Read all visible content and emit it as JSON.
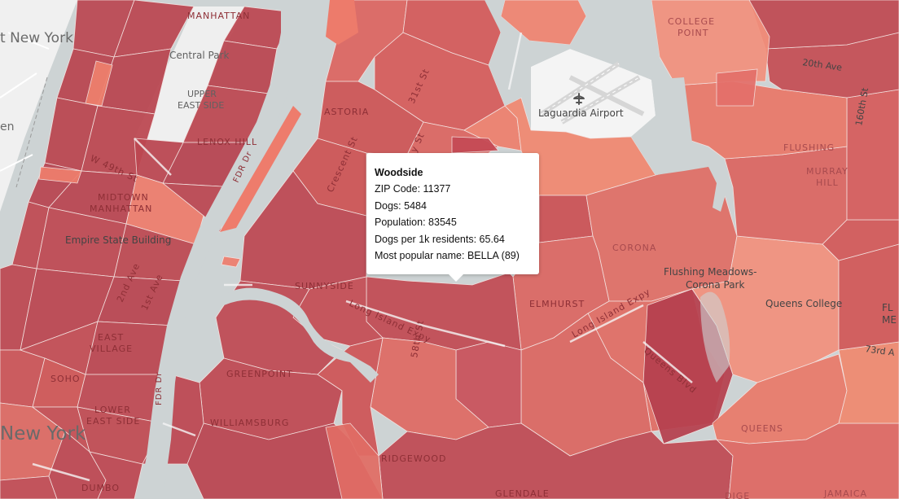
{
  "tooltip": {
    "title": "Woodside",
    "zip_label": "ZIP Code:",
    "zip_value": "11377",
    "dogs_label": "Dogs:",
    "dogs_value": "5484",
    "population_label": "Population:",
    "population_value": "83545",
    "ratio_label": "Dogs per 1k residents:",
    "ratio_value": "65.64",
    "name_label": "Most popular name:",
    "name_value": "BELLA (89)"
  },
  "labels": {
    "manhattan": "MANHATTAN",
    "central_park": "Central Park",
    "upper_east_side_1": "UPPER",
    "upper_east_side_2": "EAST SIDE",
    "lenox_hill": "LENOX HILL",
    "w49th": "W 49th St",
    "midtown_1": "MIDTOWN",
    "midtown_2": "MANHATTAN",
    "empire_state": "Empire State Building",
    "ave_2nd": "2nd Ave",
    "ave_1st": "1st Ave",
    "east_village_1": "EAST",
    "east_village_2": "VILLAGE",
    "soho": "SOHO",
    "les_1": "LOWER",
    "les_2": "EAST SIDE",
    "fdr": "FDR Dr",
    "new_york_top": "t New York",
    "new_york_big": "New York",
    "hen": "en",
    "astoria": "ASTORIA",
    "st31": "31st St",
    "crescent": "Crescent St",
    "ray": "ray St",
    "sunnyside": "SUNNYSIDE",
    "lie1": "Long Island Expy",
    "st58": "58th St",
    "greenpoint": "GREENPOINT",
    "williamsburg": "WILLIAMSBURG",
    "ridgewood": "RIDGEWOOD",
    "glendale": "GLENDALE",
    "dumbo": "DUMBO",
    "elmhurst": "ELMHURST",
    "lie2": "Long Island Expy",
    "queens_blvd": "Queens Blvd",
    "corona": "CORONA",
    "fmcp_1": "Flushing Meadows-",
    "fmcp_2": "Corona Park",
    "queens_college": "Queens College",
    "queens": "QUEENS",
    "jamaica": "JAMAICA",
    "college_point_1": "COLLEGE",
    "college_point_2": "POINT",
    "ave20": "20th Ave",
    "flushing": "FLUSHING",
    "murray_hill_1": "MURRAY",
    "murray_hill_2": "HILL",
    "laguardia": "Laguardia Airport",
    "fl": "FL",
    "me": "ME",
    "st160": "160th St",
    "rd73": "73rd A",
    "fdr2": "FDR Dr",
    "dige": "DIGE"
  },
  "colors": {
    "water": "#cdd3d4",
    "land": "#f1f1f1",
    "choropleth_dark": "#b8444e",
    "choropleth_mid": "#d5595a",
    "choropleth_light": "#ee7d6d",
    "choropleth_lightest": "#f2957f"
  },
  "icons": {
    "airport": "airplane-icon"
  }
}
